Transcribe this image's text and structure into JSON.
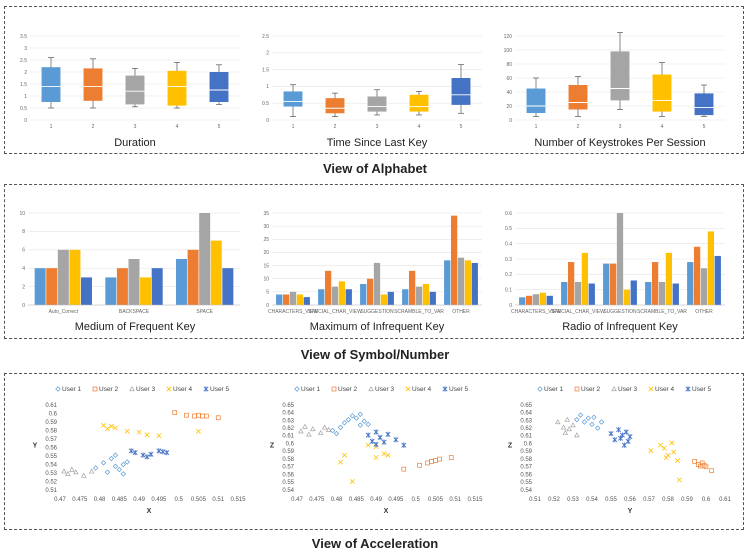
{
  "sections": {
    "alphabet_title": "View of Alphabet",
    "symbol_title": "View of Symbol/Number",
    "acceleration_title": "View of Acceleration"
  },
  "colors": {
    "c1": "#5B9BD5",
    "c2": "#ED7D31",
    "c3": "#A5A5A5",
    "c4": "#FFC000",
    "c5": "#4472C4"
  },
  "chart_data": [
    {
      "type": "box",
      "title": "Duration",
      "categories": [
        "1",
        "2",
        "3",
        "4",
        "5"
      ],
      "ylim": [
        0,
        3.5
      ],
      "yticks": [
        "0",
        "0.5",
        "1",
        "1.5",
        "2",
        "2.5",
        "3",
        "3.5"
      ],
      "boxes": [
        [
          0.5,
          0.75,
          1.4,
          2.2,
          2.6
        ],
        [
          0.5,
          0.8,
          1.4,
          2.15,
          2.55
        ],
        [
          0.55,
          0.65,
          1.2,
          1.85,
          2.15
        ],
        [
          0.5,
          0.6,
          1.4,
          2.05,
          2.4
        ],
        [
          0.65,
          0.75,
          1.25,
          2.0,
          2.3
        ]
      ]
    },
    {
      "type": "box",
      "title": "Time Since Last Key",
      "categories": [
        "1",
        "2",
        "3",
        "4",
        "5"
      ],
      "ylim": [
        0,
        2.5
      ],
      "yticks": [
        "0",
        "0.5",
        "1",
        "1.5",
        "2",
        "2.5"
      ],
      "boxes": [
        [
          0.1,
          0.4,
          0.55,
          0.85,
          1.05
        ],
        [
          0.1,
          0.2,
          0.35,
          0.65,
          0.8
        ],
        [
          0.15,
          0.25,
          0.4,
          0.7,
          0.9
        ],
        [
          0.15,
          0.25,
          0.4,
          0.75,
          0.85
        ],
        [
          0.2,
          0.45,
          0.75,
          1.25,
          1.65
        ]
      ]
    },
    {
      "type": "box",
      "title": "Number of Keystrokes Per Session",
      "categories": [
        "1",
        "2",
        "3",
        "4",
        "5"
      ],
      "ylim": [
        0,
        120
      ],
      "yticks": [
        "0",
        "20",
        "40",
        "60",
        "80",
        "100",
        "120"
      ],
      "boxes": [
        [
          5,
          10,
          20,
          45,
          60
        ],
        [
          5,
          15,
          25,
          50,
          62
        ],
        [
          15,
          28,
          45,
          98,
          125
        ],
        [
          5,
          12,
          28,
          65,
          82
        ],
        [
          5,
          7,
          18,
          38,
          50
        ]
      ]
    },
    {
      "type": "bar",
      "title": "Medium of Frequent Key",
      "categories": [
        "Auto_Correct",
        "BACKSPACE",
        "SPACE"
      ],
      "ylim": [
        0,
        10
      ],
      "yticks": [
        "0",
        "2",
        "4",
        "6",
        "8",
        "10"
      ],
      "series": [
        {
          "values": [
            4,
            3,
            5
          ]
        },
        {
          "values": [
            4,
            4,
            6
          ]
        },
        {
          "values": [
            6,
            5,
            10
          ]
        },
        {
          "values": [
            6,
            3,
            7
          ]
        },
        {
          "values": [
            3,
            4,
            4
          ]
        }
      ]
    },
    {
      "type": "bar",
      "title": "Maximum of Infrequent Key",
      "categories": [
        "CHARACTERS_VIEW",
        "SPECIAL_CHAR_VIEW",
        "SUGGESTION",
        "SCRAMBLE_TO_VAR",
        "OTHER"
      ],
      "ylim": [
        0,
        35
      ],
      "yticks": [
        "0",
        "5",
        "10",
        "15",
        "20",
        "25",
        "30",
        "35"
      ],
      "series": [
        {
          "values": [
            4,
            6,
            8,
            6,
            17
          ]
        },
        {
          "values": [
            4,
            13,
            10,
            13,
            34
          ]
        },
        {
          "values": [
            5,
            7,
            16,
            7,
            18
          ]
        },
        {
          "values": [
            4,
            9,
            4,
            8,
            17
          ]
        },
        {
          "values": [
            3,
            6,
            5,
            5,
            16
          ]
        }
      ]
    },
    {
      "type": "bar",
      "title": "Radio of Infrequent Key",
      "categories": [
        "CHARACTERS_VIEW",
        "SPECIAL_CHAR_VIEW",
        "SUGGESTION",
        "SCRAMBLE_TO_VAR",
        "OTHER"
      ],
      "ylim": [
        0,
        0.6
      ],
      "yticks": [
        "0",
        "0.1",
        "0.2",
        "0.3",
        "0.4",
        "0.5",
        "0.6"
      ],
      "series": [
        {
          "values": [
            0.05,
            0.15,
            0.27,
            0.15,
            0.28
          ]
        },
        {
          "values": [
            0.06,
            0.28,
            0.27,
            0.28,
            0.38
          ]
        },
        {
          "values": [
            0.07,
            0.15,
            0.6,
            0.15,
            0.24
          ]
        },
        {
          "values": [
            0.08,
            0.34,
            0.1,
            0.34,
            0.48
          ]
        },
        {
          "values": [
            0.06,
            0.14,
            0.16,
            0.14,
            0.32
          ]
        }
      ]
    },
    {
      "type": "scatter",
      "xlabel": "X",
      "ylabel": "Y",
      "xlim": [
        0.47,
        0.515
      ],
      "ylim": [
        0.51,
        0.61
      ],
      "xticks": [
        "0.47",
        "0.475",
        "0.48",
        "0.485",
        "0.49",
        "0.495",
        "0.5",
        "0.505",
        "0.51",
        "0.515"
      ],
      "yticks": [
        "0.51",
        "0.52",
        "0.53",
        "0.54",
        "0.55",
        "0.56",
        "0.57",
        "0.58",
        "0.59",
        "0.6",
        "0.61"
      ],
      "series": [
        {
          "name": "User 1",
          "points": [
            [
              0.479,
              0.536
            ],
            [
              0.481,
              0.542
            ],
            [
              0.482,
              0.531
            ],
            [
              0.483,
              0.547
            ],
            [
              0.484,
              0.538
            ],
            [
              0.485,
              0.534
            ],
            [
              0.486,
              0.529
            ],
            [
              0.484,
              0.551
            ],
            [
              0.487,
              0.543
            ],
            [
              0.486,
              0.54
            ]
          ]
        },
        {
          "name": "User 2",
          "points": [
            [
              0.499,
              0.601
            ],
            [
              0.502,
              0.598
            ],
            [
              0.504,
              0.597
            ],
            [
              0.505,
              0.598
            ],
            [
              0.506,
              0.597
            ],
            [
              0.51,
              0.595
            ],
            [
              0.507,
              0.597
            ]
          ]
        },
        {
          "name": "User 3",
          "points": [
            [
              0.471,
              0.532
            ],
            [
              0.472,
              0.529
            ],
            [
              0.474,
              0.531
            ],
            [
              0.476,
              0.527
            ],
            [
              0.478,
              0.532
            ],
            [
              0.473,
              0.534
            ]
          ]
        },
        {
          "name": "User 4",
          "points": [
            [
              0.481,
              0.586
            ],
            [
              0.482,
              0.582
            ],
            [
              0.483,
              0.585
            ],
            [
              0.487,
              0.579
            ],
            [
              0.49,
              0.578
            ],
            [
              0.492,
              0.575
            ],
            [
              0.495,
              0.574
            ],
            [
              0.505,
              0.579
            ],
            [
              0.484,
              0.583
            ]
          ]
        },
        {
          "name": "User 5",
          "points": [
            [
              0.488,
              0.556
            ],
            [
              0.489,
              0.554
            ],
            [
              0.491,
              0.551
            ],
            [
              0.493,
              0.552
            ],
            [
              0.495,
              0.556
            ],
            [
              0.496,
              0.555
            ],
            [
              0.497,
              0.554
            ],
            [
              0.492,
              0.549
            ]
          ]
        }
      ]
    },
    {
      "type": "scatter",
      "xlabel": "X",
      "ylabel": "Z",
      "xlim": [
        0.47,
        0.515
      ],
      "ylim": [
        0.54,
        0.65
      ],
      "xticks": [
        "0.47",
        "0.475",
        "0.48",
        "0.485",
        "0.49",
        "0.495",
        "0.5",
        "0.505",
        "0.51",
        "0.515"
      ],
      "yticks": [
        "0.54",
        "0.55",
        "0.56",
        "0.57",
        "0.58",
        "0.59",
        "0.6",
        "0.61",
        "0.62",
        "0.63",
        "0.64",
        "0.65"
      ],
      "series": [
        {
          "name": "User 1",
          "points": [
            [
              0.479,
              0.617
            ],
            [
              0.481,
              0.621
            ],
            [
              0.482,
              0.627
            ],
            [
              0.483,
              0.631
            ],
            [
              0.484,
              0.636
            ],
            [
              0.485,
              0.633
            ],
            [
              0.486,
              0.638
            ],
            [
              0.487,
              0.629
            ],
            [
              0.486,
              0.624
            ],
            [
              0.488,
              0.625
            ],
            [
              0.48,
              0.613
            ]
          ]
        },
        {
          "name": "User 2",
          "points": [
            [
              0.497,
              0.567
            ],
            [
              0.501,
              0.572
            ],
            [
              0.503,
              0.575
            ],
            [
              0.504,
              0.577
            ],
            [
              0.505,
              0.578
            ],
            [
              0.506,
              0.58
            ],
            [
              0.509,
              0.582
            ]
          ]
        },
        {
          "name": "User 3",
          "points": [
            [
              0.471,
              0.616
            ],
            [
              0.472,
              0.622
            ],
            [
              0.474,
              0.619
            ],
            [
              0.476,
              0.614
            ],
            [
              0.477,
              0.621
            ],
            [
              0.473,
              0.612
            ],
            [
              0.478,
              0.618
            ]
          ]
        },
        {
          "name": "User 4",
          "points": [
            [
              0.481,
              0.576
            ],
            [
              0.482,
              0.585
            ],
            [
              0.484,
              0.551
            ],
            [
              0.488,
              0.598
            ],
            [
              0.49,
              0.582
            ],
            [
              0.492,
              0.587
            ],
            [
              0.493,
              0.585
            ],
            [
              0.49,
              0.596
            ]
          ]
        },
        {
          "name": "User 5",
          "points": [
            [
              0.488,
              0.611
            ],
            [
              0.489,
              0.603
            ],
            [
              0.49,
              0.615
            ],
            [
              0.491,
              0.608
            ],
            [
              0.492,
              0.602
            ],
            [
              0.493,
              0.612
            ],
            [
              0.495,
              0.605
            ],
            [
              0.497,
              0.598
            ],
            [
              0.49,
              0.599
            ]
          ]
        }
      ]
    },
    {
      "type": "scatter",
      "xlabel": "Y",
      "ylabel": "Z",
      "xlim": [
        0.51,
        0.61
      ],
      "ylim": [
        0.54,
        0.65
      ],
      "xticks": [
        "0.51",
        "0.52",
        "0.53",
        "0.54",
        "0.55",
        "0.56",
        "0.57",
        "0.58",
        "0.59",
        "0.6",
        "0.61"
      ],
      "yticks": [
        "0.54",
        "0.55",
        "0.56",
        "0.57",
        "0.58",
        "0.59",
        "0.6",
        "0.61",
        "0.62",
        "0.63",
        "0.64",
        "0.65"
      ],
      "series": [
        {
          "name": "User 1",
          "points": [
            [
              0.532,
              0.631
            ],
            [
              0.534,
              0.637
            ],
            [
              0.536,
              0.628
            ],
            [
              0.538,
              0.633
            ],
            [
              0.54,
              0.625
            ],
            [
              0.541,
              0.634
            ],
            [
              0.543,
              0.62
            ],
            [
              0.545,
              0.628
            ]
          ]
        },
        {
          "name": "User 2",
          "points": [
            [
              0.594,
              0.577
            ],
            [
              0.596,
              0.573
            ],
            [
              0.597,
              0.571
            ],
            [
              0.598,
              0.575
            ],
            [
              0.599,
              0.572
            ],
            [
              0.6,
              0.57
            ],
            [
              0.603,
              0.565
            ]
          ]
        },
        {
          "name": "User 3",
          "points": [
            [
              0.522,
              0.628
            ],
            [
              0.525,
              0.621
            ],
            [
              0.526,
              0.614
            ],
            [
              0.528,
              0.619
            ],
            [
              0.53,
              0.624
            ],
            [
              0.532,
              0.611
            ],
            [
              0.527,
              0.631
            ]
          ]
        },
        {
          "name": "User 4",
          "points": [
            [
              0.571,
              0.591
            ],
            [
              0.576,
              0.598
            ],
            [
              0.578,
              0.594
            ],
            [
              0.58,
              0.585
            ],
            [
              0.582,
              0.601
            ],
            [
              0.583,
              0.589
            ],
            [
              0.585,
              0.578
            ],
            [
              0.586,
              0.553
            ],
            [
              0.579,
              0.582
            ]
          ]
        },
        {
          "name": "User 5",
          "points": [
            [
              0.55,
              0.613
            ],
            [
              0.552,
              0.605
            ],
            [
              0.554,
              0.618
            ],
            [
              0.555,
              0.607
            ],
            [
              0.556,
              0.611
            ],
            [
              0.557,
              0.598
            ],
            [
              0.558,
              0.615
            ],
            [
              0.559,
              0.603
            ],
            [
              0.56,
              0.609
            ]
          ]
        }
      ]
    }
  ]
}
